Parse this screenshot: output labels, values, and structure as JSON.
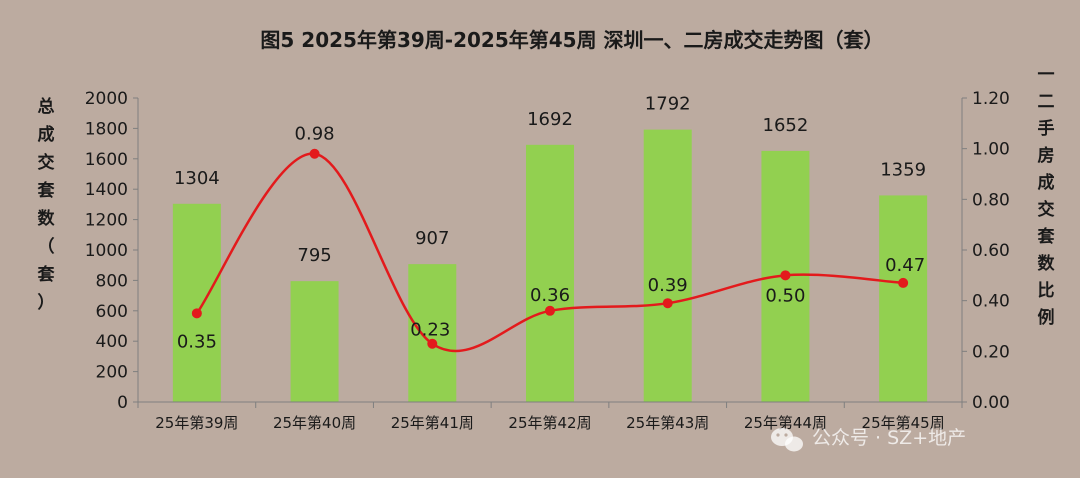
{
  "chart_data": {
    "type": "bar+line",
    "title": "图5  2025年第39周-2025年第45周 深圳一、二房成交走势图（套）",
    "categories": [
      "25年第39周",
      "25年第40周",
      "25年第41周",
      "25年第42周",
      "25年第43周",
      "25年第44周",
      "25年第45周"
    ],
    "bar_series": {
      "values": [
        1304,
        795,
        907,
        1692,
        1792,
        1652,
        1359
      ],
      "color": "#92d050",
      "labels": [
        "1304",
        "795",
        "907",
        "1692",
        "1792",
        "1652",
        "1359"
      ]
    },
    "line_series": {
      "values": [
        0.35,
        0.98,
        0.23,
        0.36,
        0.39,
        0.5,
        0.47
      ],
      "color": "#e31a1c",
      "labels": [
        "0.35",
        "0.98",
        "0.23",
        "0.36",
        "0.39",
        "0.50",
        "0.47"
      ]
    },
    "y_left": {
      "label": [
        "总",
        "成",
        "交",
        "套",
        "数",
        "（",
        "套",
        "）"
      ],
      "ylim": [
        0,
        2000
      ],
      "ticks": [
        "0",
        "200",
        "400",
        "600",
        "800",
        "1000",
        "1200",
        "1400",
        "1600",
        "1800",
        "2000"
      ]
    },
    "y_right": {
      "label": [
        "一",
        "二",
        "手",
        "房",
        "成",
        "交",
        "套",
        "数",
        "比",
        "例"
      ],
      "ylim": [
        0,
        1.2
      ],
      "ticks": [
        "0.00",
        "0.20",
        "0.40",
        "0.60",
        "0.80",
        "1.00",
        "1.20"
      ]
    },
    "grid": false
  },
  "watermark": "公众号 · SZ+地产"
}
